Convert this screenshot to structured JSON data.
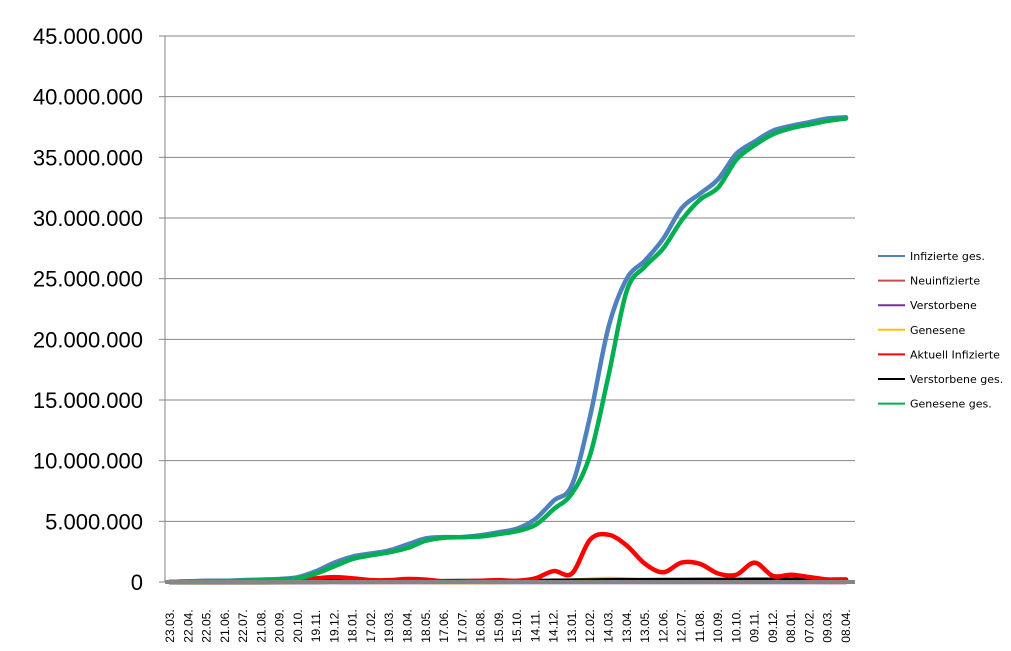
{
  "chart_data": {
    "type": "line",
    "title": "",
    "xlabel": "",
    "ylabel": "",
    "ylim": [
      0,
      45000000
    ],
    "yticks": [
      "0",
      "5.000.000",
      "10.000.000",
      "15.000.000",
      "20.000.000",
      "25.000.000",
      "30.000.000",
      "35.000.000",
      "40.000.000",
      "45.000.000"
    ],
    "grid": true,
    "legend_position": "right",
    "categories": [
      "23.03.",
      "22.04.",
      "22.05.",
      "21.06.",
      "22.07.",
      "21.08.",
      "20.09.",
      "20.10.",
      "19.11.",
      "19.12.",
      "18.01.",
      "17.02.",
      "19.03.",
      "18.04.",
      "18.05.",
      "17.06.",
      "17.07.",
      "16.08.",
      "15.09.",
      "15.10.",
      "14.11.",
      "14.12.",
      "13.01.",
      "12.02.",
      "14.03.",
      "13.04.",
      "13.05.",
      "12.06.",
      "12.07.",
      "11.08.",
      "10.09.",
      "10.10.",
      "09.11.",
      "09.12.",
      "08.01.",
      "07.02.",
      "09.03.",
      "08.04."
    ],
    "series": [
      {
        "name": "Infizierte ges.",
        "color": "#4f81bd",
        "values": [
          0,
          50000,
          100000,
          100000,
          150000,
          200000,
          250000,
          400000,
          900000,
          1600000,
          2100000,
          2350000,
          2600000,
          3100000,
          3600000,
          3700000,
          3700000,
          3850000,
          4100000,
          4400000,
          5200000,
          6700000,
          8000000,
          13700000,
          21000000,
          25000000,
          26500000,
          28300000,
          30800000,
          32000000,
          33200000,
          35300000,
          36300000,
          37200000,
          37600000,
          37900000,
          38200000,
          38300000
        ]
      },
      {
        "name": "Neuinfizierte",
        "color": "#c0504d",
        "values": [
          0,
          5000,
          5000,
          5000,
          5000,
          5000,
          10000,
          20000,
          20000,
          20000,
          10000,
          10000,
          10000,
          20000,
          10000,
          5000,
          5000,
          5000,
          10000,
          20000,
          30000,
          40000,
          50000,
          80000,
          60000,
          40000,
          30000,
          40000,
          50000,
          40000,
          30000,
          50000,
          40000,
          30000,
          30000,
          20000,
          10000,
          10000
        ]
      },
      {
        "name": "Verstorbene",
        "color": "#7030a0",
        "values": [
          0,
          0,
          0,
          0,
          0,
          0,
          0,
          0,
          0,
          0,
          0,
          0,
          0,
          0,
          0,
          0,
          0,
          0,
          0,
          0,
          0,
          0,
          0,
          0,
          0,
          0,
          0,
          0,
          0,
          0,
          0,
          0,
          0,
          0,
          0,
          0,
          0,
          0
        ]
      },
      {
        "name": "Genesene",
        "color": "#ffc000",
        "values": [
          0,
          5000,
          5000,
          5000,
          5000,
          5000,
          10000,
          20000,
          20000,
          30000,
          20000,
          10000,
          10000,
          20000,
          10000,
          5000,
          5000,
          5000,
          10000,
          20000,
          30000,
          60000,
          100000,
          200000,
          250000,
          200000,
          100000,
          60000,
          60000,
          50000,
          40000,
          60000,
          50000,
          40000,
          40000,
          30000,
          20000,
          10000
        ]
      },
      {
        "name": "Aktuell Infizierte",
        "color": "#ff0000",
        "values": [
          0,
          50000,
          50000,
          50000,
          50000,
          50000,
          50000,
          100000,
          300000,
          400000,
          300000,
          150000,
          150000,
          250000,
          200000,
          50000,
          50000,
          100000,
          150000,
          100000,
          300000,
          900000,
          700000,
          3500000,
          3900000,
          3000000,
          1500000,
          800000,
          1600000,
          1500000,
          700000,
          600000,
          1600000,
          500000,
          600000,
          400000,
          200000,
          150000
        ]
      },
      {
        "name": "Verstorbene ges.",
        "color": "#000000",
        "values": [
          0,
          1000,
          2000,
          3000,
          4000,
          5000,
          6000,
          8000,
          12000,
          20000,
          30000,
          40000,
          50000,
          60000,
          70000,
          75000,
          78000,
          80000,
          82000,
          85000,
          90000,
          100000,
          110000,
          125000,
          140000,
          150000,
          155000,
          160000,
          165000,
          170000,
          175000,
          180000,
          185000,
          190000,
          195000,
          200000,
          200000,
          200000
        ]
      },
      {
        "name": "Genesene ges.",
        "color": "#00b050",
        "values": [
          0,
          20000,
          50000,
          80000,
          100000,
          150000,
          200000,
          300000,
          700000,
          1300000,
          1900000,
          2200000,
          2450000,
          2800000,
          3400000,
          3650000,
          3700000,
          3750000,
          3950000,
          4200000,
          4700000,
          6000000,
          7300000,
          10500000,
          17000000,
          24000000,
          26000000,
          27500000,
          29800000,
          31500000,
          32500000,
          34800000,
          36000000,
          36900000,
          37400000,
          37700000,
          38000000,
          38200000
        ]
      }
    ]
  }
}
